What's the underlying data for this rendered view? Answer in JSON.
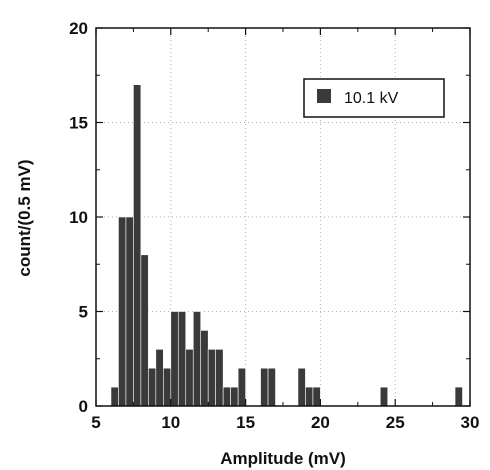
{
  "chart_data": {
    "type": "bar",
    "title": "",
    "xlabel": "Amplitude (mV)",
    "ylabel": "count/(0.5 mV)",
    "xlim": [
      5,
      30
    ],
    "ylim": [
      0,
      20
    ],
    "x_ticks": [
      5,
      10,
      15,
      20,
      25,
      30
    ],
    "y_ticks": [
      0,
      5,
      10,
      15,
      20
    ],
    "grid": true,
    "bin_width": 0.5,
    "legend_position": "top-right",
    "series": [
      {
        "name": "10.1 kV",
        "color": "#3a3a3a",
        "bins": [
          {
            "x": 6.0,
            "y": 1
          },
          {
            "x": 6.5,
            "y": 10
          },
          {
            "x": 7.0,
            "y": 10
          },
          {
            "x": 7.5,
            "y": 17
          },
          {
            "x": 8.0,
            "y": 8
          },
          {
            "x": 8.5,
            "y": 2
          },
          {
            "x": 9.0,
            "y": 3
          },
          {
            "x": 9.5,
            "y": 2
          },
          {
            "x": 10.0,
            "y": 5
          },
          {
            "x": 10.5,
            "y": 5
          },
          {
            "x": 11.0,
            "y": 3
          },
          {
            "x": 11.5,
            "y": 5
          },
          {
            "x": 12.0,
            "y": 4
          },
          {
            "x": 12.5,
            "y": 3
          },
          {
            "x": 13.0,
            "y": 3
          },
          {
            "x": 13.5,
            "y": 1
          },
          {
            "x": 14.0,
            "y": 1
          },
          {
            "x": 14.5,
            "y": 2
          },
          {
            "x": 16.0,
            "y": 2
          },
          {
            "x": 16.5,
            "y": 2
          },
          {
            "x": 18.5,
            "y": 2
          },
          {
            "x": 19.0,
            "y": 1
          },
          {
            "x": 19.5,
            "y": 1
          },
          {
            "x": 24.0,
            "y": 1
          },
          {
            "x": 29.0,
            "y": 1
          }
        ]
      }
    ]
  }
}
